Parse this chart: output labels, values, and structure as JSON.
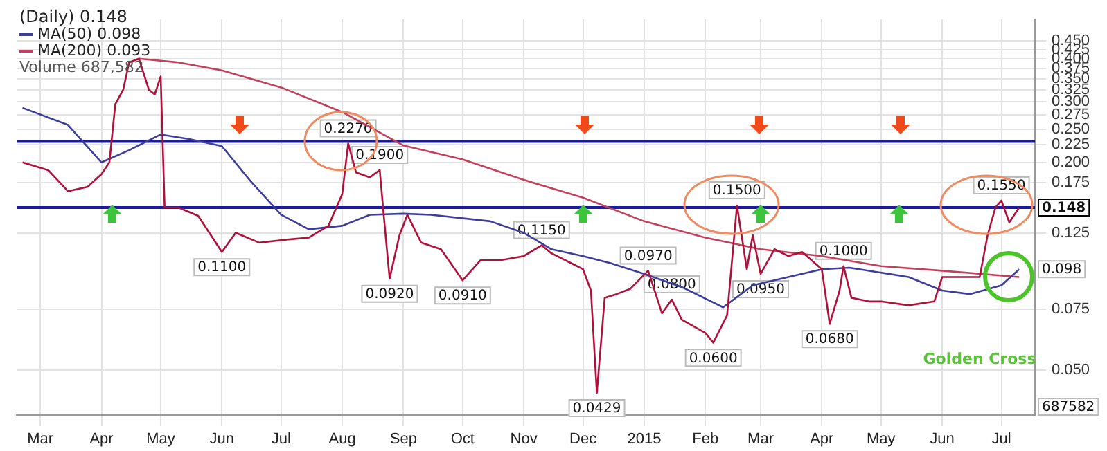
{
  "chart_data": {
    "type": "line",
    "title": "(Daily) 0.148",
    "log": "y",
    "grid": true,
    "legend": "top left",
    "marker": "none",
    "line_style": "solid",
    "xlim": [
      "2014-02-17",
      "2015-07-18"
    ],
    "xticks": [
      {
        "value": "2014-03-01",
        "label": "Mar"
      },
      {
        "value": "2014-04-01",
        "label": "Apr"
      },
      {
        "value": "2014-05-01",
        "label": "May"
      },
      {
        "value": "2014-06-01",
        "label": "Jun"
      },
      {
        "value": "2014-07-01",
        "label": "Jul"
      },
      {
        "value": "2014-08-01",
        "label": "Aug"
      },
      {
        "value": "2014-09-01",
        "label": "Sep"
      },
      {
        "value": "2014-10-01",
        "label": "Oct"
      },
      {
        "value": "2014-11-01",
        "label": "Nov"
      },
      {
        "value": "2014-12-01",
        "label": "Dec"
      },
      {
        "value": "2015-01-01",
        "label": "2015"
      },
      {
        "value": "2015-02-01",
        "label": "Feb"
      },
      {
        "value": "2015-03-01",
        "label": "Mar"
      },
      {
        "value": "2015-04-01",
        "label": "Apr"
      },
      {
        "value": "2015-05-01",
        "label": "May"
      },
      {
        "value": "2015-06-01",
        "label": "Jun"
      },
      {
        "value": "2015-07-01",
        "label": "Jul"
      }
    ],
    "ylim": [
      0.037,
      0.52
    ],
    "yticks": [
      {
        "value": 0.45,
        "label": "0.450"
      },
      {
        "value": 0.425,
        "label": "0.425"
      },
      {
        "value": 0.4,
        "label": "0.400"
      },
      {
        "value": 0.375,
        "label": "0.375"
      },
      {
        "value": 0.35,
        "label": "0.350"
      },
      {
        "value": 0.325,
        "label": "0.325"
      },
      {
        "value": 0.3,
        "label": "0.300"
      },
      {
        "value": 0.275,
        "label": "0.275"
      },
      {
        "value": 0.25,
        "label": "0.250"
      },
      {
        "value": 0.225,
        "label": "0.225"
      },
      {
        "value": 0.2,
        "label": "0.200"
      },
      {
        "value": 0.175,
        "label": "0.175"
      },
      {
        "value": 0.125,
        "label": "0.125"
      },
      {
        "value": 0.075,
        "label": "0.075"
      },
      {
        "value": 0.05,
        "label": "0.050"
      }
    ],
    "series": [
      {
        "color": "#b0103a",
        "x": [
          "2014-02-20",
          "2014-03-05",
          "2014-03-15",
          "2014-03-25",
          "2014-04-01",
          "2014-04-05",
          "2014-04-08",
          "2014-04-12",
          "2014-04-15",
          "2014-04-20",
          "2014-04-25",
          "2014-04-28",
          "2014-05-01",
          "2014-05-03",
          "2014-05-10",
          "2014-05-20",
          "2014-06-01",
          "2014-06-08",
          "2014-06-20",
          "2014-07-01",
          "2014-07-15",
          "2014-07-25",
          "2014-08-01",
          "2014-08-04",
          "2014-08-08",
          "2014-08-15",
          "2014-08-20",
          "2014-08-22",
          "2014-08-25",
          "2014-08-30",
          "2014-09-03",
          "2014-09-10",
          "2014-09-20",
          "2014-10-01",
          "2014-10-10",
          "2014-10-20",
          "2014-11-01",
          "2014-11-10",
          "2014-11-15",
          "2014-11-25",
          "2014-12-01",
          "2014-12-05",
          "2014-12-08",
          "2014-12-12",
          "2014-12-18",
          "2014-12-25",
          "2015-01-03",
          "2015-01-10",
          "2015-01-15",
          "2015-01-20",
          "2015-02-01",
          "2015-02-05",
          "2015-02-12",
          "2015-02-17",
          "2015-02-22",
          "2015-02-25",
          "2015-03-01",
          "2015-03-08",
          "2015-03-15",
          "2015-03-22",
          "2015-04-01",
          "2015-04-05",
          "2015-04-10",
          "2015-04-12",
          "2015-04-16",
          "2015-04-25",
          "2015-05-01",
          "2015-05-15",
          "2015-05-28",
          "2015-06-01",
          "2015-06-10",
          "2015-06-20",
          "2015-06-24",
          "2015-06-28",
          "2015-07-01",
          "2015-07-05",
          "2015-07-10"
        ],
        "values": [
          0.2,
          0.19,
          0.165,
          0.17,
          0.185,
          0.2,
          0.295,
          0.325,
          0.39,
          0.4,
          0.325,
          0.315,
          0.355,
          0.148,
          0.148,
          0.14,
          0.11,
          0.125,
          0.117,
          0.119,
          0.121,
          0.131,
          0.162,
          0.227,
          0.187,
          0.181,
          0.19,
          0.141,
          0.092,
          0.123,
          0.141,
          0.117,
          0.112,
          0.091,
          0.104,
          0.104,
          0.107,
          0.115,
          0.109,
          0.102,
          0.098,
          0.085,
          0.0429,
          0.081,
          0.083,
          0.086,
          0.097,
          0.073,
          0.08,
          0.07,
          0.064,
          0.06,
          0.072,
          0.15,
          0.098,
          0.123,
          0.095,
          0.112,
          0.107,
          0.11,
          0.098,
          0.068,
          0.085,
          0.1,
          0.081,
          0.079,
          0.079,
          0.077,
          0.079,
          0.093,
          0.093,
          0.093,
          0.123,
          0.148,
          0.155,
          0.134,
          0.148
        ]
      },
      {
        "name": "MA(50) 0.098",
        "color": "#3d3d9e",
        "x": [
          "2014-02-20",
          "2014-03-15",
          "2014-04-01",
          "2014-04-15",
          "2014-05-01",
          "2014-05-15",
          "2014-06-01",
          "2014-06-15",
          "2014-07-01",
          "2014-07-15",
          "2014-08-01",
          "2014-08-15",
          "2014-09-01",
          "2014-09-15",
          "2014-10-15",
          "2014-11-01",
          "2014-11-15",
          "2014-12-01",
          "2014-12-15",
          "2015-01-01",
          "2015-01-20",
          "2015-02-10",
          "2015-02-25",
          "2015-03-15",
          "2015-04-01",
          "2015-04-15",
          "2015-05-15",
          "2015-06-01",
          "2015-06-15",
          "2015-07-01",
          "2015-07-10"
        ],
        "values": [
          0.288,
          0.257,
          0.2,
          0.217,
          0.241,
          0.234,
          0.223,
          0.178,
          0.141,
          0.128,
          0.131,
          0.141,
          0.142,
          0.141,
          0.135,
          0.125,
          0.112,
          0.107,
          0.102,
          0.095,
          0.087,
          0.076,
          0.088,
          0.093,
          0.098,
          0.099,
          0.093,
          0.085,
          0.083,
          0.088,
          0.098
        ]
      },
      {
        "name": "MA(200) 0.093",
        "color": "#c2405e",
        "x": [
          "2014-04-20",
          "2014-05-10",
          "2014-06-01",
          "2014-07-01",
          "2014-08-01",
          "2014-09-01",
          "2014-10-01",
          "2014-11-01",
          "2014-12-01",
          "2015-01-01",
          "2015-02-01",
          "2015-03-01",
          "2015-04-01",
          "2015-05-01",
          "2015-06-01",
          "2015-07-10"
        ],
        "values": [
          0.4,
          0.39,
          0.37,
          0.33,
          0.28,
          0.224,
          0.204,
          0.178,
          0.158,
          0.135,
          0.121,
          0.112,
          0.107,
          0.1,
          0.097,
          0.093
        ]
      }
    ],
    "ref_lines": [
      {
        "axis": "y",
        "value": 0.23,
        "color": "#1a1aa6"
      },
      {
        "axis": "y",
        "value": 0.148,
        "label": "0.148",
        "color": "#1a1aa6"
      }
    ],
    "annotations": [
      "Volume 687,582",
      "687582",
      {
        "text": "0.2270",
        "x": "2014-08-04",
        "y": 0.227
      },
      {
        "text": "0.1900",
        "x": "2014-08-20",
        "y": 0.19
      },
      {
        "text": "0.1100",
        "x": "2014-06-01",
        "y": 0.11
      },
      {
        "text": "0.0920",
        "x": "2014-08-25",
        "y": 0.092
      },
      {
        "text": "0.0910",
        "x": "2014-10-01",
        "y": 0.091
      },
      {
        "text": "0.1150",
        "x": "2014-11-10",
        "y": 0.115
      },
      {
        "text": "0.0429",
        "x": "2014-12-08",
        "y": 0.0429
      },
      {
        "text": "0.0970",
        "x": "2015-01-03",
        "y": 0.097
      },
      {
        "text": "0.0800",
        "x": "2015-01-15",
        "y": 0.08
      },
      {
        "text": "0.0600",
        "x": "2015-02-05",
        "y": 0.06
      },
      {
        "text": "0.1500",
        "x": "2015-02-17",
        "y": 0.15
      },
      {
        "text": "0.0950",
        "x": "2015-03-01",
        "y": 0.095
      },
      {
        "text": "0.0680",
        "x": "2015-04-05",
        "y": 0.068
      },
      {
        "text": "0.1000",
        "x": "2015-04-12",
        "y": 0.1
      },
      {
        "text": "0.1550",
        "x": "2015-07-01",
        "y": 0.155
      },
      {
        "text": "0.098",
        "y": 0.098
      },
      "Golden Cross"
    ]
  }
}
